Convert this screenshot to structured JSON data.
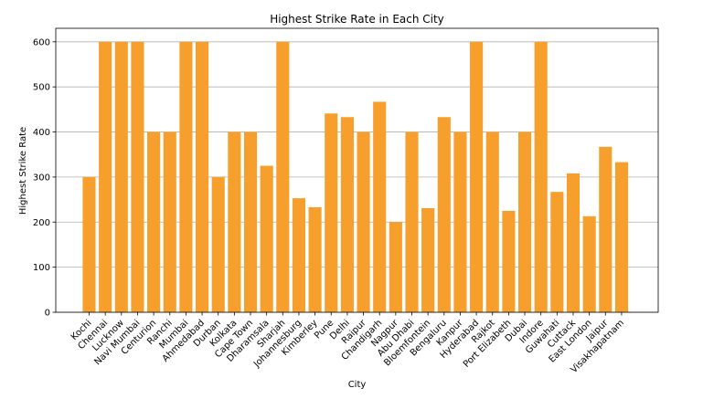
{
  "chart_data": {
    "type": "bar",
    "title": "Highest Strike Rate in Each City",
    "xlabel": "City",
    "ylabel": "Highest Strike Rate",
    "ylim": [
      0,
      630
    ],
    "yticks": [
      0,
      100,
      200,
      300,
      400,
      500,
      600
    ],
    "grid": "horizontal",
    "bar_color": "#f79f2d",
    "grid_color": "#b0b0b0",
    "categories": [
      "Kochi",
      "Chennai",
      "Lucknow",
      "Navi Mumbai",
      "Centurion",
      "Ranchi",
      "Mumbai",
      "Ahmedabad",
      "Durban",
      "Kolkata",
      "Cape Town",
      "Dharamsala",
      "Sharjah",
      "Johannesburg",
      "Kimberley",
      "Pune",
      "Delhi",
      "Raipur",
      "Chandigarh",
      "Nagpur",
      "Abu Dhabi",
      "Bloemfontein",
      "Bengaluru",
      "Kanpur",
      "Hyderabad",
      "Rajkot",
      "Port Elizabeth",
      "Dubai",
      "Indore",
      "Guwahati",
      "Cuttack",
      "East London",
      "Jaipur",
      "Visakhapatnam"
    ],
    "values": [
      300,
      600,
      600,
      600,
      400,
      400,
      600,
      600,
      300,
      400,
      400,
      325,
      600,
      253,
      233,
      441,
      433,
      400,
      467,
      200,
      400,
      231,
      433,
      400,
      600,
      400,
      225,
      400,
      600,
      267,
      308,
      213,
      367,
      333
    ]
  }
}
